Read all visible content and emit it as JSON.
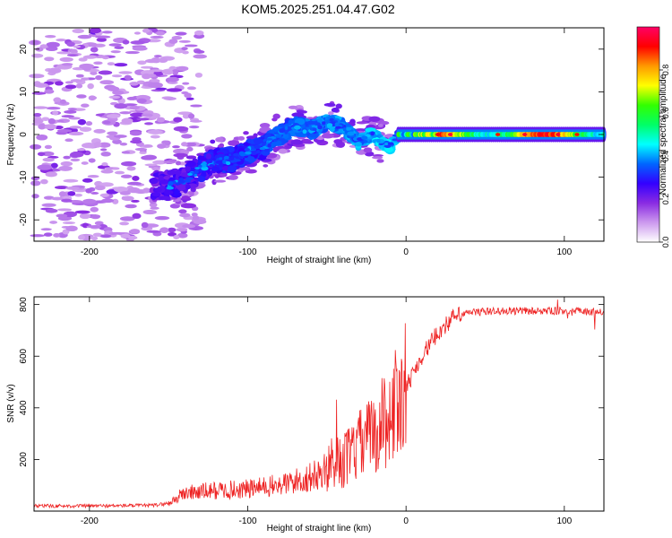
{
  "figure": {
    "title": "KOM5.2025.251.04.47.G02"
  },
  "chart_data": [
    {
      "type": "heatmap",
      "name": "spectrogram",
      "xlabel": "Height of straight line (km)",
      "ylabel": "Frequency (Hz)",
      "xlim": [
        -235,
        125
      ],
      "ylim": [
        -25,
        25
      ],
      "xticks": [
        -200,
        -100,
        0,
        100
      ],
      "yticks": [
        -20,
        -10,
        0,
        10,
        20
      ],
      "colorbar": {
        "label": "Normalized spectral amplitude",
        "range": [
          0,
          1
        ],
        "ticks": [
          0.0,
          0.2,
          0.4,
          0.6,
          0.8
        ],
        "tick_labels": [
          "0.0",
          "0.2",
          "0.4",
          "0.6",
          "0.8"
        ],
        "colors": [
          "#ffffff",
          "#cc99ee",
          "#8a2be2",
          "#3300ff",
          "#0066ff",
          "#00ffff",
          "#00ff66",
          "#33ff00",
          "#ffff00",
          "#ff9900",
          "#ff0000",
          "#ff0066"
        ]
      },
      "ridge_points_km_hz": [
        [
          -150,
          -12
        ],
        [
          -140,
          -11
        ],
        [
          -130,
          -8
        ],
        [
          -120,
          -6
        ],
        [
          -110,
          -6
        ],
        [
          -100,
          -4
        ],
        [
          -90,
          -3
        ],
        [
          -80,
          0
        ],
        [
          -70,
          2
        ],
        [
          -60,
          1
        ],
        [
          -50,
          3
        ],
        [
          -40,
          2
        ],
        [
          -30,
          -2
        ],
        [
          -22,
          0
        ],
        [
          -15,
          -2
        ],
        [
          -10,
          -3
        ],
        [
          -5,
          0
        ],
        [
          0,
          0
        ],
        [
          20,
          0
        ],
        [
          50,
          0
        ],
        [
          80,
          0
        ],
        [
          100,
          0
        ],
        [
          120,
          0
        ]
      ],
      "strong_signal_km": [
        -5,
        125
      ],
      "noise_region_km": [
        -235,
        -150
      ]
    },
    {
      "type": "line",
      "name": "snr",
      "xlabel": "Height of straight line (km)",
      "ylabel": "SNR (v/v)",
      "xlim": [
        -235,
        125
      ],
      "ylim": [
        0,
        830
      ],
      "xticks": [
        -200,
        -100,
        0,
        100
      ],
      "yticks": [
        200,
        400,
        600,
        800
      ],
      "series": [
        {
          "name": "SNR",
          "color": "#ee2222",
          "x": [
            -235,
            -200,
            -160,
            -150,
            -140,
            -120,
            -100,
            -80,
            -60,
            -40,
            -30,
            -20,
            -10,
            0,
            10,
            20,
            30,
            40,
            60,
            80,
            100,
            125
          ],
          "y": [
            20,
            20,
            22,
            30,
            70,
            80,
            85,
            100,
            130,
            190,
            250,
            300,
            380,
            480,
            600,
            690,
            750,
            770,
            775,
            775,
            775,
            770
          ]
        }
      ]
    }
  ]
}
